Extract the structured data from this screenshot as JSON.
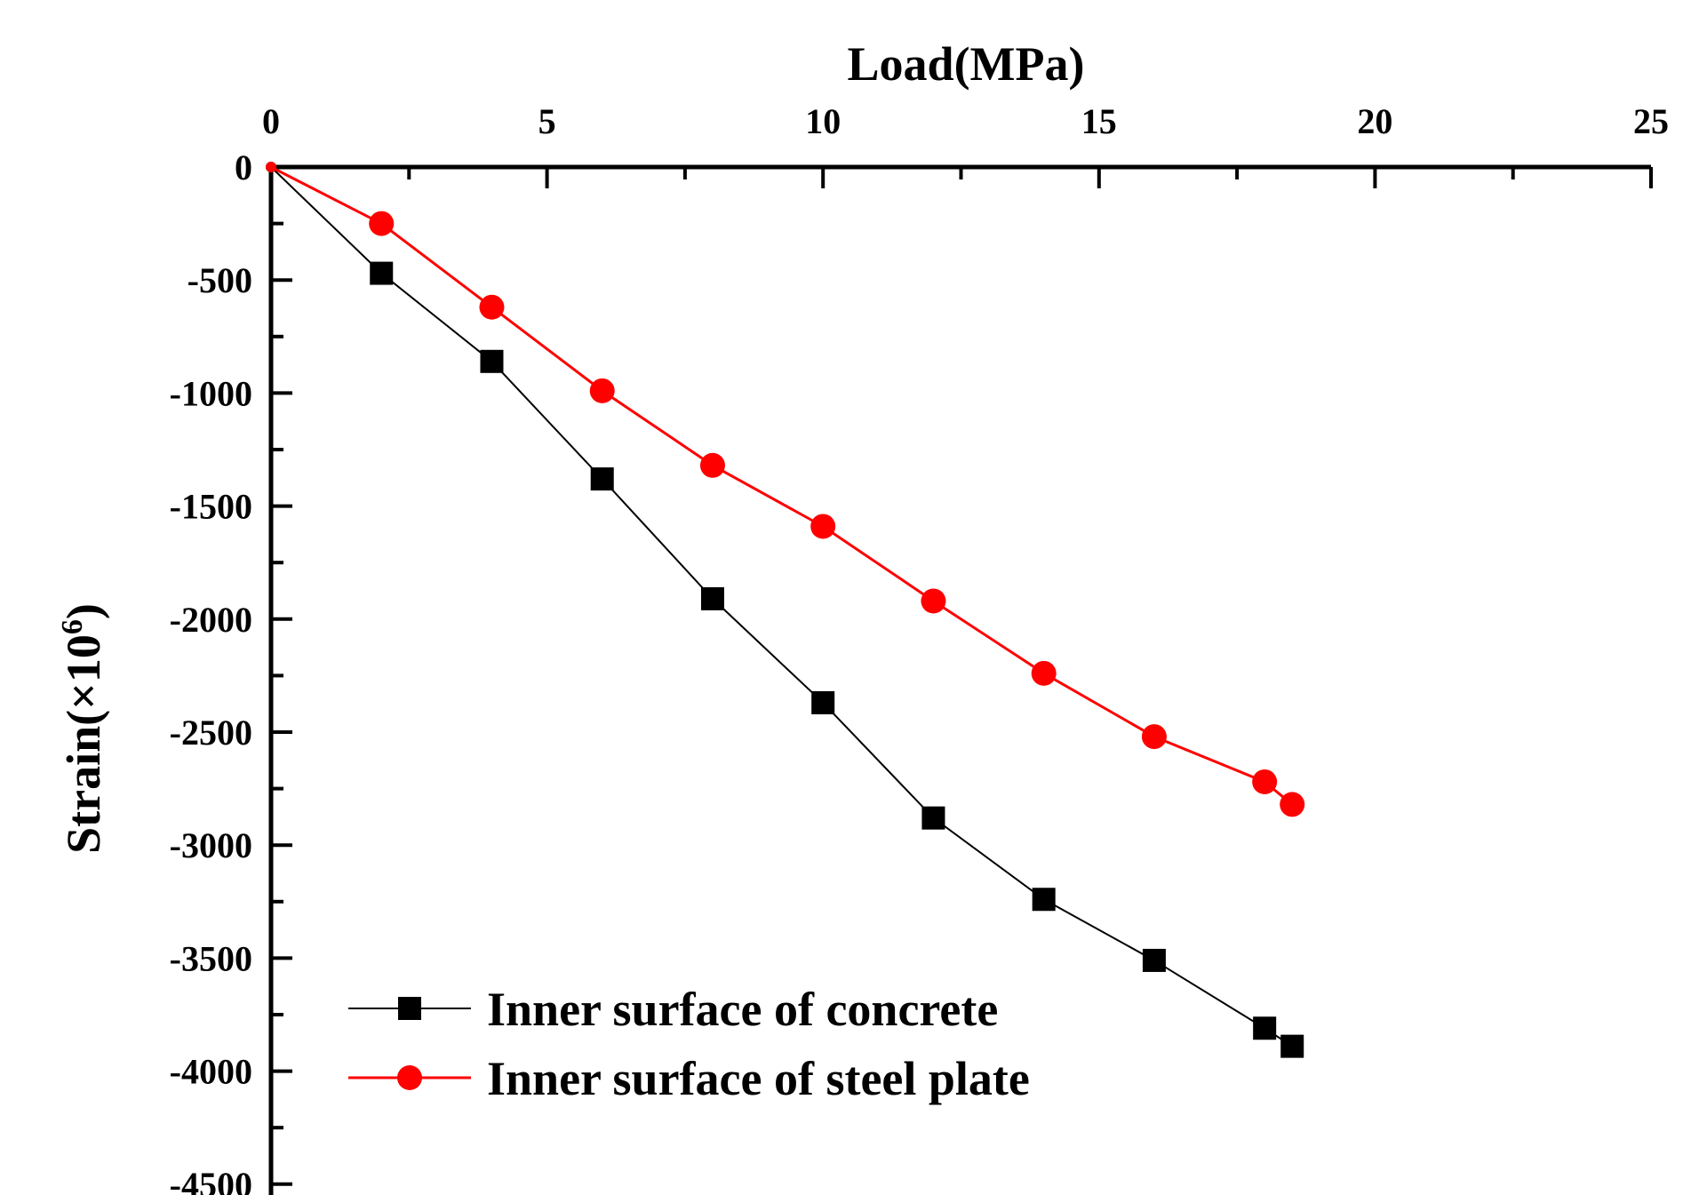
{
  "chart_data": {
    "type": "line",
    "title": "",
    "xlabel": "Load(MPa)",
    "ylabel_main": "Strain(×10",
    "ylabel_sup": "6",
    "ylabel_close": ")",
    "xlim": [
      0,
      25
    ],
    "ylim": [
      -4500,
      0
    ],
    "x_ticks": [
      0,
      5,
      10,
      15,
      20,
      25
    ],
    "y_ticks": [
      0,
      -500,
      -1000,
      -1500,
      -2000,
      -2500,
      -3000,
      -3500,
      -4000,
      -4500
    ],
    "x_tick_labels": [
      "0",
      "5",
      "10",
      "15",
      "20",
      "25"
    ],
    "y_tick_labels": [
      "0",
      "-500",
      "-1000",
      "-1500",
      "-2000",
      "-2500",
      "-3000",
      "-3500",
      "-4000",
      "-4500"
    ],
    "x_axis_position": "top",
    "grid": false,
    "legend_position": "bottom-left",
    "series": [
      {
        "name": "Inner surface of concrete",
        "color": "#000000",
        "marker": "square",
        "x": [
          0,
          2,
          4,
          6,
          8,
          10,
          12,
          14,
          16,
          18,
          18.5
        ],
        "y": [
          0,
          -470,
          -860,
          -1380,
          -1910,
          -2370,
          -2880,
          -3240,
          -3510,
          -3810,
          -3890
        ]
      },
      {
        "name": "Inner surface of steel plate",
        "color": "#ff0000",
        "marker": "circle",
        "x": [
          0,
          2,
          4,
          6,
          8,
          10,
          12,
          14,
          16,
          18,
          18.5
        ],
        "y": [
          0,
          -250,
          -620,
          -990,
          -1320,
          -1590,
          -1920,
          -2240,
          -2520,
          -2720,
          -2820
        ]
      }
    ]
  }
}
